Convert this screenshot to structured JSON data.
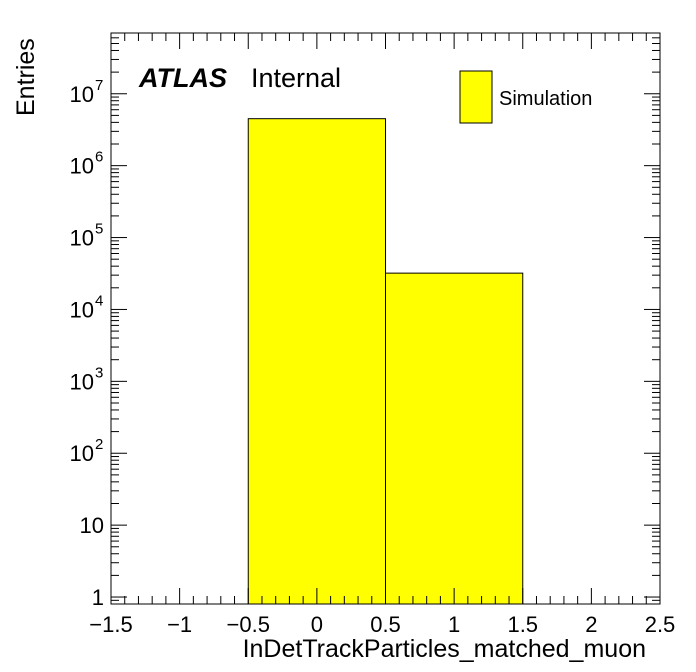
{
  "chart_data": {
    "type": "bar",
    "histogram": true,
    "log_y": true,
    "xlabel": "InDetTrackParticles_matched_muon",
    "ylabel": "Entries",
    "xlim": [
      -1.5,
      2.5
    ],
    "ylim": [
      0.8,
      70000000
    ],
    "bins": [
      {
        "low": -0.5,
        "high": 0.5,
        "value": 4500000
      },
      {
        "low": 0.5,
        "high": 1.5,
        "value": 32000
      }
    ],
    "x_ticks": [
      {
        "value": -1.5,
        "label": "−1.5"
      },
      {
        "value": -1,
        "label": "−1"
      },
      {
        "value": -0.5,
        "label": "−0.5"
      },
      {
        "value": 0,
        "label": "0"
      },
      {
        "value": 0.5,
        "label": "0.5"
      },
      {
        "value": 1,
        "label": "1"
      },
      {
        "value": 1.5,
        "label": "1.5"
      },
      {
        "value": 2,
        "label": "2"
      },
      {
        "value": 2.5,
        "label": "2.5"
      }
    ],
    "y_ticks": [
      {
        "value": 1,
        "base": "1",
        "exp": ""
      },
      {
        "value": 10,
        "base": "10",
        "exp": ""
      },
      {
        "value": 100,
        "base": "10",
        "exp": "2"
      },
      {
        "value": 1000,
        "base": "10",
        "exp": "3"
      },
      {
        "value": 10000,
        "base": "10",
        "exp": "4"
      },
      {
        "value": 100000,
        "base": "10",
        "exp": "5"
      },
      {
        "value": 1000000,
        "base": "10",
        "exp": "6"
      },
      {
        "value": 10000000,
        "base": "10",
        "exp": "7"
      }
    ],
    "fill_color": "#ffff00",
    "line_color": "#000000",
    "label": {
      "experiment": "ATLAS",
      "status": "Internal"
    },
    "legend": {
      "position": "top-right",
      "entries": [
        {
          "label": "Simulation",
          "color": "#ffff00"
        }
      ]
    }
  }
}
